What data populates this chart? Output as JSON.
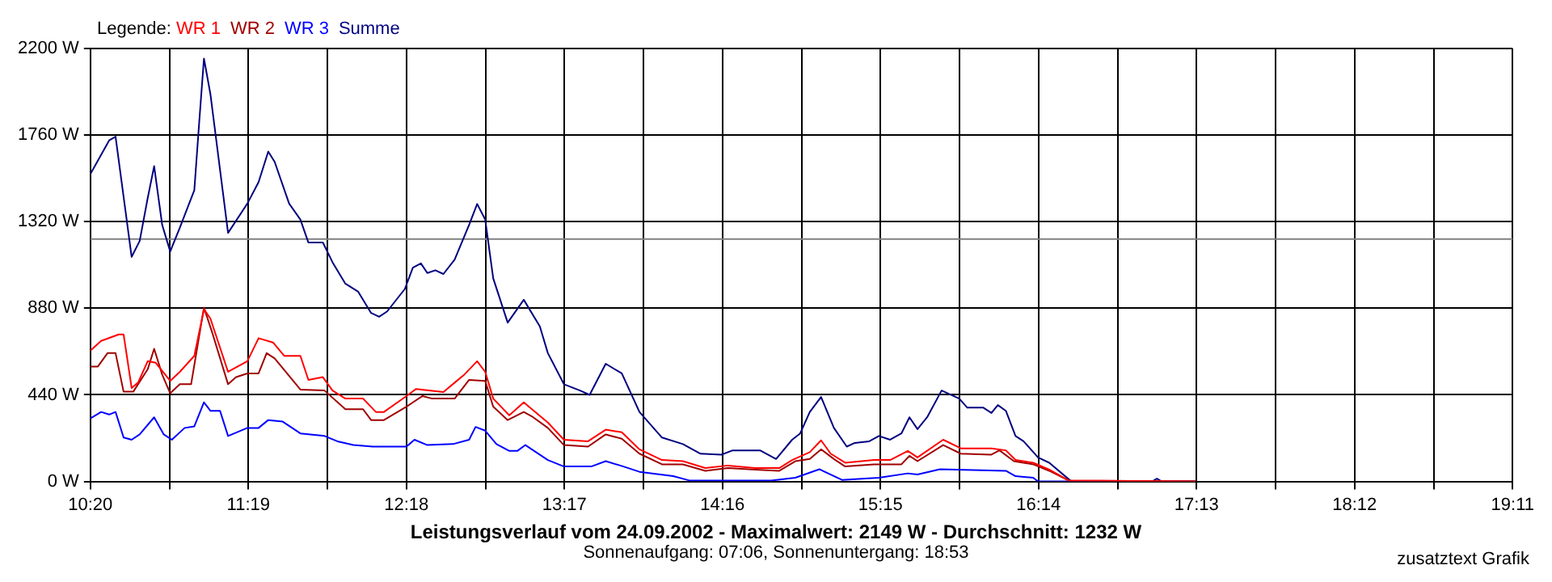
{
  "chart_data": {
    "type": "line",
    "title": "Leistungsverlauf vom 24.09.2002 - Maximalwert: 2149 W - Durchschnitt: 1232 W",
    "subtitle": "Sonnenaufgang: 07:06, Sonnenuntergang: 18:53",
    "legend_title": "Legende:",
    "legend": "top left",
    "grid": true,
    "marker": "none",
    "line_style": "solid",
    "annotations": [
      "zusatztext Grafik"
    ],
    "xlim": [
      10.3333,
      19.1833
    ],
    "xticks": [
      {
        "value": 10.3333,
        "label": "10:20"
      },
      {
        "value": 10.825,
        "label": null
      },
      {
        "value": 11.3167,
        "label": "11:19"
      },
      {
        "value": 11.8083,
        "label": null
      },
      {
        "value": 12.3,
        "label": "12:18"
      },
      {
        "value": 12.7917,
        "label": null
      },
      {
        "value": 13.2833,
        "label": "13:17"
      },
      {
        "value": 13.775,
        "label": null
      },
      {
        "value": 14.2667,
        "label": "14:16"
      },
      {
        "value": 14.7583,
        "label": null
      },
      {
        "value": 15.25,
        "label": "15:15"
      },
      {
        "value": 15.7417,
        "label": null
      },
      {
        "value": 16.2333,
        "label": "16:14"
      },
      {
        "value": 16.725,
        "label": null
      },
      {
        "value": 17.2167,
        "label": "17:13"
      },
      {
        "value": 17.7083,
        "label": null
      },
      {
        "value": 18.2,
        "label": "18:12"
      },
      {
        "value": 18.6917,
        "label": null
      },
      {
        "value": 19.1833,
        "label": "19:11"
      }
    ],
    "ylim": [
      0,
      2200
    ],
    "yticks": [
      {
        "value": 0,
        "label": "0 W"
      },
      {
        "value": 440,
        "label": "440 W"
      },
      {
        "value": 880,
        "label": "880 W"
      },
      {
        "value": 1320,
        "label": "1320 W"
      },
      {
        "value": 1760,
        "label": "1760 W"
      },
      {
        "value": 2200,
        "label": "2200 W"
      }
    ],
    "ref_lines": [
      {
        "axis": "y",
        "value": 1232,
        "color": "#808080"
      }
    ],
    "series": [
      {
        "name": "WR 1",
        "color": "#ff0000",
        "x": [
          10.3333,
          10.4,
          10.51,
          10.54,
          10.59,
          10.63,
          10.69,
          10.74,
          10.83,
          10.89,
          10.98,
          11.04,
          11.08,
          11.19,
          11.31,
          11.38,
          11.47,
          11.54,
          11.64,
          11.69,
          11.78,
          11.84,
          11.92,
          12.03,
          12.11,
          12.16,
          12.3,
          12.36,
          12.53,
          12.6,
          12.66,
          12.74,
          12.79,
          12.84,
          12.94,
          13.03,
          13.18,
          13.28,
          13.43,
          13.54,
          13.64,
          13.75,
          13.89,
          14.02,
          14.16,
          14.3,
          14.47,
          14.62,
          14.7,
          14.81,
          14.88,
          14.94,
          15.03,
          15.21,
          15.31,
          15.42,
          15.48,
          15.64,
          15.75,
          15.94,
          16.03,
          16.09,
          16.2,
          16.3,
          16.42,
          17.21
        ],
        "values": [
          665,
          714,
          747,
          747,
          475,
          502,
          611,
          603,
          511,
          557,
          638,
          875,
          828,
          557,
          611,
          728,
          706,
          638,
          638,
          516,
          530,
          462,
          421,
          421,
          353,
          353,
          434,
          470,
          454,
          502,
          543,
          611,
          557,
          421,
          336,
          402,
          299,
          212,
          204,
          263,
          250,
          163,
          109,
          103,
          68,
          81,
          68,
          68,
          109,
          149,
          209,
          141,
          95,
          109,
          109,
          155,
          122,
          212,
          168,
          168,
          158,
          109,
          95,
          60,
          5,
          0
        ]
      },
      {
        "name": "WR 2",
        "color": "#a00000",
        "x": [
          10.3333,
          10.38,
          10.44,
          10.49,
          10.54,
          10.6,
          10.69,
          10.73,
          10.78,
          10.83,
          10.89,
          10.96,
          11.04,
          11.09,
          11.19,
          11.24,
          11.31,
          11.38,
          11.43,
          11.48,
          11.64,
          11.79,
          11.92,
          12.03,
          12.08,
          12.16,
          12.3,
          12.4,
          12.46,
          12.6,
          12.69,
          12.79,
          12.84,
          12.93,
          13.03,
          13.08,
          13.18,
          13.28,
          13.43,
          13.54,
          13.64,
          13.75,
          13.89,
          14.02,
          14.16,
          14.3,
          14.47,
          14.62,
          14.72,
          14.81,
          14.88,
          14.96,
          15.03,
          15.21,
          15.38,
          15.43,
          15.48,
          15.64,
          15.75,
          15.94,
          15.99,
          16.08,
          16.2,
          16.3,
          16.42,
          17.21
        ],
        "values": [
          584,
          584,
          652,
          652,
          456,
          456,
          570,
          674,
          543,
          448,
          494,
          494,
          883,
          760,
          494,
          530,
          549,
          549,
          652,
          625,
          467,
          462,
          367,
          367,
          312,
          312,
          380,
          434,
          421,
          421,
          516,
          511,
          380,
          312,
          353,
          331,
          272,
          185,
          177,
          239,
          217,
          141,
          87,
          87,
          54,
          68,
          60,
          54,
          103,
          114,
          163,
          114,
          76,
          87,
          87,
          130,
          103,
          185,
          141,
          136,
          158,
          103,
          87,
          54,
          5,
          0
        ]
      },
      {
        "name": "WR 3",
        "color": "#0000ff",
        "x": [
          10.3333,
          10.4,
          10.45,
          10.49,
          10.54,
          10.59,
          10.64,
          10.73,
          10.79,
          10.84,
          10.92,
          10.98,
          11.04,
          11.08,
          11.14,
          11.19,
          11.31,
          11.38,
          11.44,
          11.53,
          11.64,
          11.79,
          11.87,
          11.97,
          12.09,
          12.3,
          12.35,
          12.43,
          12.59,
          12.69,
          12.73,
          12.79,
          12.86,
          12.94,
          12.99,
          13.04,
          13.18,
          13.28,
          13.45,
          13.54,
          13.65,
          13.75,
          13.96,
          14.06,
          14.57,
          14.72,
          14.87,
          15.01,
          15.24,
          15.42,
          15.48,
          15.62,
          16.03,
          16.09,
          16.2,
          16.23,
          17.21
        ],
        "values": [
          320,
          353,
          340,
          353,
          223,
          212,
          239,
          326,
          239,
          212,
          272,
          280,
          402,
          359,
          359,
          231,
          272,
          272,
          312,
          304,
          244,
          231,
          204,
          185,
          177,
          177,
          212,
          185,
          190,
          212,
          277,
          258,
          190,
          155,
          155,
          185,
          109,
          76,
          76,
          103,
          76,
          49,
          27,
          5,
          5,
          19,
          62,
          8,
          19,
          41,
          35,
          62,
          54,
          27,
          19,
          0,
          0
        ]
      },
      {
        "name": "Summe",
        "color": "#000080",
        "x": [
          10.3333,
          10.45,
          10.49,
          10.59,
          10.64,
          10.69,
          10.73,
          10.78,
          10.83,
          10.89,
          10.98,
          11.01,
          11.04,
          11.08,
          11.19,
          11.31,
          11.38,
          11.44,
          11.48,
          11.57,
          11.64,
          11.69,
          11.78,
          11.84,
          11.92,
          12.0,
          12.08,
          12.13,
          12.18,
          12.29,
          12.34,
          12.39,
          12.43,
          12.48,
          12.53,
          12.6,
          12.69,
          12.74,
          12.79,
          12.84,
          12.93,
          13.03,
          13.13,
          13.18,
          13.28,
          13.38,
          13.44,
          13.54,
          13.64,
          13.75,
          13.89,
          14.02,
          14.13,
          14.26,
          14.33,
          14.5,
          14.6,
          14.7,
          14.75,
          14.81,
          14.88,
          14.96,
          15.04,
          15.09,
          15.18,
          15.24,
          15.31,
          15.38,
          15.43,
          15.48,
          15.54,
          15.63,
          15.74,
          15.79,
          15.89,
          15.94,
          15.98,
          16.03,
          16.09,
          16.14,
          16.23,
          16.3,
          16.43,
          16.45,
          16.94,
          16.97,
          17.0,
          17.21
        ],
        "values": [
          1562,
          1733,
          1752,
          1141,
          1222,
          1440,
          1602,
          1304,
          1168,
          1290,
          1480,
          1820,
          2149,
          1969,
          1263,
          1412,
          1521,
          1676,
          1624,
          1412,
          1331,
          1214,
          1214,
          1114,
          1005,
          964,
          856,
          837,
          864,
          978,
          1086,
          1108,
          1059,
          1073,
          1054,
          1127,
          1304,
          1410,
          1331,
          1032,
          807,
          923,
          788,
          652,
          494,
          462,
          440,
          598,
          549,
          353,
          223,
          190,
          141,
          136,
          158,
          158,
          114,
          212,
          244,
          353,
          429,
          272,
          177,
          196,
          204,
          231,
          212,
          244,
          326,
          266,
          326,
          462,
          421,
          375,
          375,
          348,
          388,
          359,
          231,
          204,
          122,
          95,
          5,
          0,
          0,
          14,
          0,
          0
        ]
      }
    ]
  }
}
